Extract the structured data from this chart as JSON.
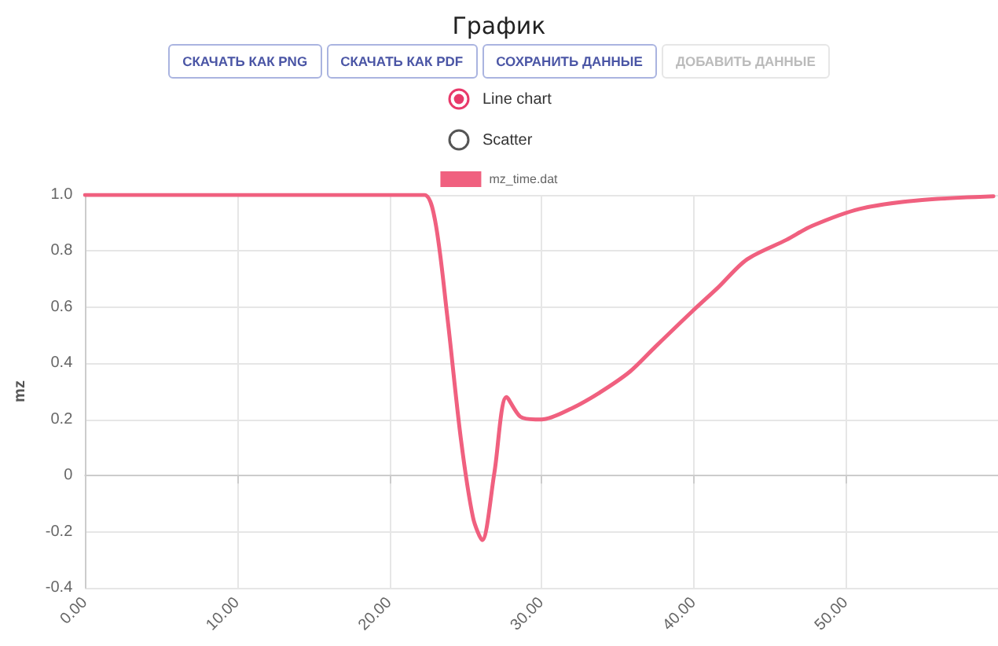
{
  "chart_data": {
    "type": "line",
    "title": "График",
    "ylabel": "mz",
    "legend": "top",
    "grid": true,
    "marker": "none",
    "line_style": "solid",
    "annotations": [
      "СКАЧАТЬ КАК PNG",
      "СКАЧАТЬ КАК PDF",
      "СОХРАНИТЬ ДАННЫЕ",
      "ДОБАВИТЬ ДАННЫЕ",
      "Line chart",
      "Scatter"
    ],
    "x": [
      0,
      5,
      10,
      15,
      20,
      22.3,
      23,
      23.8,
      24.7,
      25.5,
      26.1,
      26.9,
      27.7,
      28.6,
      29.6,
      30,
      32,
      33.8,
      35.8,
      37.5,
      39.9,
      41.6,
      43.5,
      46.1,
      47.8,
      50.9,
      54.6,
      59.7
    ],
    "series": [
      {
        "name": "mz_time.dat",
        "color": "#f0607f",
        "values": [
          1,
          1,
          1,
          1,
          1,
          1,
          0.91,
          0.57,
          0.13,
          -0.15,
          -0.23,
          0.01,
          0.28,
          0.21,
          0.2,
          0.2,
          0.24,
          0.295,
          0.37,
          0.46,
          0.585,
          0.67,
          0.77,
          0.84,
          0.89,
          0.95,
          0.98,
          0.995
        ]
      }
    ],
    "xlim": [
      0,
      60
    ],
    "xticks": [
      {
        "value": 0,
        "label": "0.00"
      },
      {
        "value": 10,
        "label": "10.00"
      },
      {
        "value": 20,
        "label": "20.00"
      },
      {
        "value": 30,
        "label": "30.00"
      },
      {
        "value": 40,
        "label": "40.00"
      },
      {
        "value": 50,
        "label": "50.00"
      }
    ],
    "ylim": [
      -0.4,
      1
    ],
    "yticks": [
      {
        "value": -0.4,
        "label": "-0.4"
      },
      {
        "value": -0.2,
        "label": "-0.2"
      },
      0,
      {
        "value": 0.2,
        "label": "0.2"
      },
      {
        "value": 0.4,
        "label": "0.4"
      },
      {
        "value": 0.6,
        "label": "0.6"
      },
      {
        "value": 0.8,
        "label": "0.8"
      },
      {
        "value": 1,
        "label": "1.0"
      }
    ]
  }
}
